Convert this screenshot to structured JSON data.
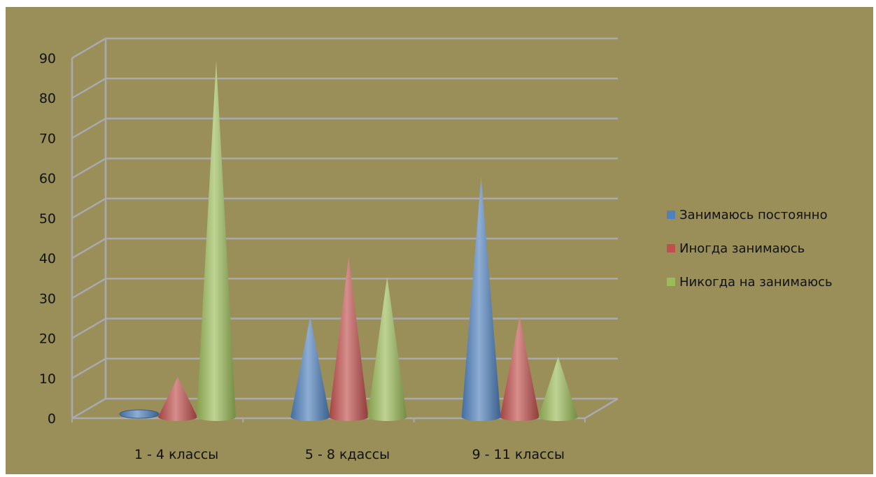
{
  "chart_data": {
    "type": "bar",
    "style": "3d-cone",
    "categories": [
      "1 - 4  классы",
      "5 - 8 кдассы",
      "9 - 11 классы"
    ],
    "series": [
      {
        "name": "Занимаюсь постоянно",
        "values": [
          0,
          25,
          60
        ],
        "color": "#4f81bd"
      },
      {
        "name": "Иногда занимаюсь",
        "values": [
          10,
          40,
          25
        ],
        "color": "#c0504d"
      },
      {
        "name": "Никогда на занимаюсь",
        "values": [
          89,
          35,
          15
        ],
        "color": "#9bbb59"
      }
    ],
    "yticks": [
      "0",
      "10",
      "20",
      "30",
      "40",
      "50",
      "60",
      "70",
      "80",
      "90"
    ],
    "ylim": [
      0,
      90
    ],
    "grid": true,
    "legend": "right",
    "background": "#9a8f59"
  }
}
